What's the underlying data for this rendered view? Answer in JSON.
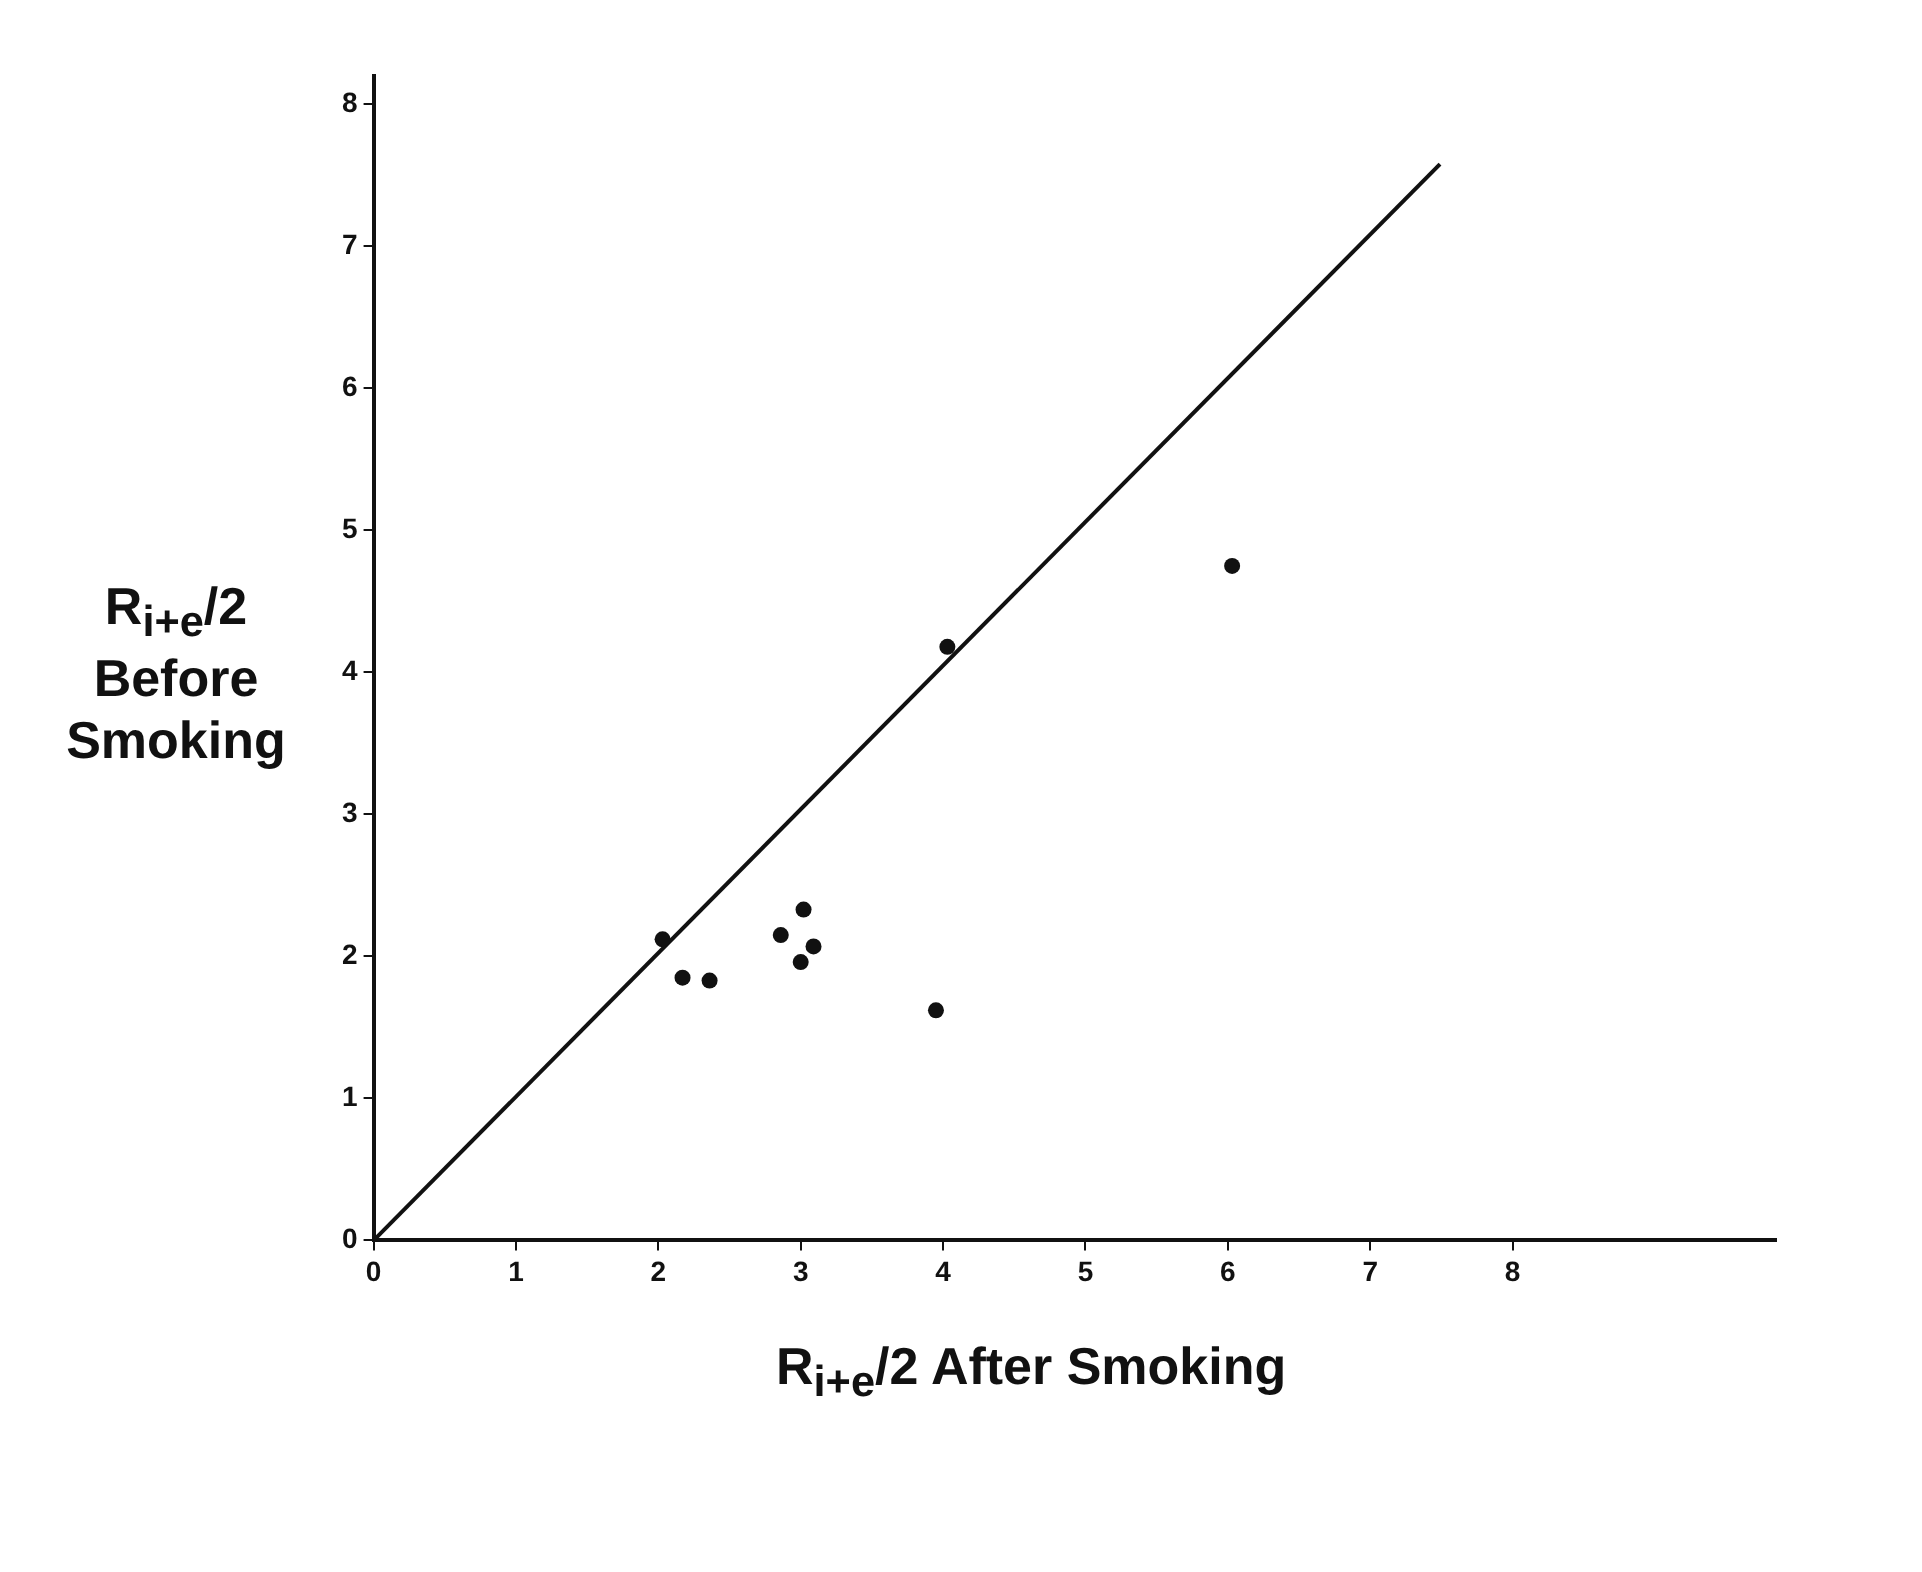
{
  "chart_data": {
    "type": "scatter",
    "xlabel": "R$_{i+e}$/2 After Smoking",
    "ylabel": "R$_{i+e}$/2 Before Smoking",
    "series": [
      {
        "type": "scatter",
        "color": "#111111",
        "marker": "circle",
        "x": [
          2.03,
          2.17,
          2.36,
          2.86,
          3.02,
          3.0,
          3.09,
          3.95,
          4.03,
          6.03
        ],
        "values": [
          2.12,
          1.85,
          1.83,
          2.15,
          2.33,
          1.96,
          2.07,
          1.62,
          4.18,
          4.75
        ]
      },
      {
        "type": "line",
        "color": "#111111",
        "marker": "none",
        "x": [
          0,
          7.49
        ],
        "values": [
          0,
          7.58
        ]
      }
    ],
    "xlim": [
      0,
      9.85
    ],
    "ylim": [
      0,
      8.2
    ],
    "xticks": [
      0,
      1,
      2,
      3,
      4,
      5,
      6,
      7,
      8
    ],
    "yticks": [
      0,
      1,
      2,
      3,
      4,
      5,
      6,
      7,
      8
    ],
    "grid": false,
    "legend": false
  }
}
